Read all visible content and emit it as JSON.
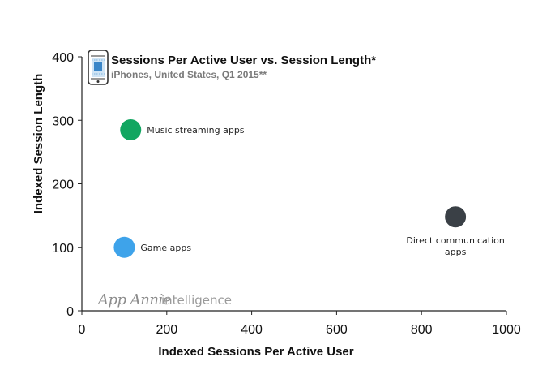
{
  "chart_data": {
    "type": "scatter",
    "title": "Sessions Per Active User vs. Session Length*",
    "subtitle": "iPhones, United States, Q1 2015**",
    "xlabel": "Indexed Sessions Per Active User",
    "ylabel": "Indexed Session Length",
    "xlim": [
      0,
      1000
    ],
    "ylim": [
      0,
      400
    ],
    "x_ticks": [
      "0",
      "200",
      "400",
      "600",
      "800",
      "1000"
    ],
    "y_ticks": [
      "0",
      "100",
      "200",
      "300",
      "400"
    ],
    "grid": false,
    "points": [
      {
        "label": "Music streaming apps",
        "x": 115,
        "y": 285,
        "color": "#12a661"
      },
      {
        "label": "Game apps",
        "x": 100,
        "y": 100,
        "color": "#3ea3ea"
      },
      {
        "label": "Direct communication apps",
        "x": 880,
        "y": 148,
        "color": "#3a4046"
      }
    ]
  },
  "header_icon": "iphone-icon",
  "watermark": {
    "brand": "App Annie",
    "suffix": "intelligence"
  }
}
